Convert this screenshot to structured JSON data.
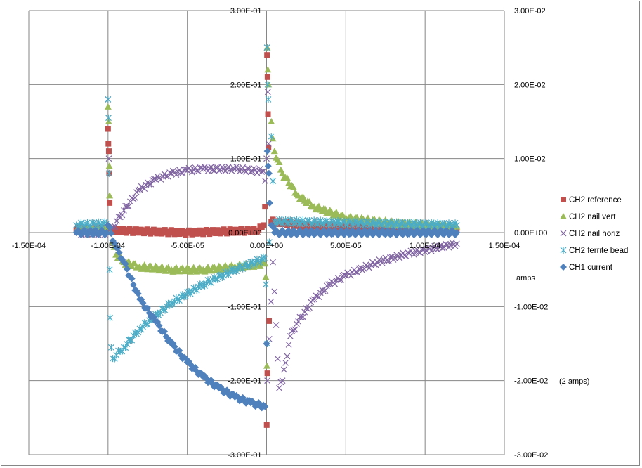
{
  "chart_data": {
    "type": "scatter",
    "title": "",
    "xlim": [
      -0.00015,
      0.00015
    ],
    "ylim": [
      -0.3,
      0.3
    ],
    "y2lim": [
      -0.03,
      0.03
    ],
    "grid": true,
    "legend_position": "right",
    "x_ticks": [
      "-1.50E-04",
      "-1.00E-04",
      "-5.00E-05",
      "0.00E+00",
      "5.00E-05",
      "1.00E-04",
      "1.50E-04"
    ],
    "x_tick_values": [
      -0.00015,
      -0.0001,
      -5e-05,
      0,
      5e-05,
      0.0001,
      0.00015
    ],
    "y_ticks": [
      "3.00E-01",
      "2.00E-01",
      "1.00E-01",
      "0.00E+00",
      "-1.00E-01",
      "-2.00E-01",
      "-3.00E-01"
    ],
    "y_tick_values": [
      0.3,
      0.2,
      0.1,
      0,
      -0.1,
      -0.2,
      -0.3
    ],
    "y2_ticks": [
      "3.00E-02",
      "2.00E-02",
      "1.00E-02",
      "0.00E+00",
      "-1.00E-02",
      "-2.00E-02",
      "-3.00E-02"
    ],
    "annotations": {
      "amps": "amps",
      "two_amps": "(2 amps)"
    },
    "series": [
      {
        "name": "CH2 reference",
        "color": "#C0504D",
        "marker": "square",
        "points": [
          [
            -0.00012,
            0.004
          ],
          [
            -0.000101,
            0.004
          ],
          [
            -0.0001,
            0.14
          ],
          [
            -9.98e-05,
            0.12
          ],
          [
            -9.95e-05,
            0.11
          ],
          [
            -9.93e-05,
            0.08
          ],
          [
            -9.9e-05,
            0.04
          ],
          [
            -9.85e-05,
            0.003
          ],
          [
            -5e-05,
            0.0
          ],
          [
            -5e-06,
            0.003
          ],
          [
            -2e-06,
            0.01
          ],
          [
            -1e-06,
            0.035
          ],
          [
            3e-07,
            0.24
          ],
          [
            6e-07,
            0.21
          ],
          [
            9e-07,
            0.16
          ],
          [
            1.2e-06,
            0.115
          ],
          [
            5e-07,
            -0.19
          ],
          [
            1e-07,
            -0.26
          ],
          [
            3e-06,
            0.015
          ],
          [
            3e-05,
            0.008
          ],
          [
            0.00012,
            0.004
          ]
        ]
      },
      {
        "name": "CH2 nail vert",
        "color": "#9BBB59",
        "marker": "triangle",
        "points": [
          [
            -0.00012,
            0.003
          ],
          [
            -0.000101,
            0.003
          ],
          [
            -0.0001,
            0.17
          ],
          [
            -9.96e-05,
            0.15
          ],
          [
            -9.92e-05,
            0.09
          ],
          [
            -9.9e-05,
            0.05
          ],
          [
            -9.85e-05,
            0.0
          ],
          [
            -9.5e-05,
            -0.03
          ],
          [
            -9e-05,
            -0.04
          ],
          [
            -8e-05,
            -0.046
          ],
          [
            -6e-05,
            -0.05
          ],
          [
            -4e-05,
            -0.05
          ],
          [
            -2e-05,
            -0.046
          ],
          [
            -1e-06,
            -0.042
          ],
          [
            -5e-07,
            -0.06
          ],
          [
            2e-07,
            -0.18
          ],
          [
            4e-07,
            0.25
          ],
          [
            8e-07,
            0.22
          ],
          [
            1.2e-06,
            0.2
          ],
          [
            3e-06,
            0.15
          ],
          [
            5e-06,
            0.11
          ],
          [
            1e-05,
            0.08
          ],
          [
            2e-05,
            0.05
          ],
          [
            3e-05,
            0.035
          ],
          [
            5e-05,
            0.02
          ],
          [
            8e-05,
            0.013
          ],
          [
            0.00012,
            0.008
          ]
        ]
      },
      {
        "name": "CH2 nail horiz",
        "color": "#8064A2",
        "marker": "x",
        "points": [
          [
            -0.00012,
            0.0
          ],
          [
            -0.000101,
            0.0
          ],
          [
            -0.0001,
            0.18
          ],
          [
            -9.95e-05,
            0.1
          ],
          [
            -9.9e-05,
            0.0
          ],
          [
            -9e-05,
            0.03
          ],
          [
            -8e-05,
            0.058
          ],
          [
            -7e-05,
            0.072
          ],
          [
            -6e-05,
            0.08
          ],
          [
            -5e-05,
            0.084
          ],
          [
            -4e-05,
            0.086
          ],
          [
            -2e-05,
            0.086
          ],
          [
            -2e-06,
            0.083
          ],
          [
            -1e-06,
            0.07
          ],
          [
            0.0,
            0.1
          ],
          [
            3e-07,
            0.25
          ],
          [
            8e-07,
            0.19
          ],
          [
            1.2e-06,
            0.12
          ],
          [
            5e-07,
            -0.2
          ],
          [
            4e-06,
            -0.04
          ],
          [
            8e-06,
            -0.21
          ],
          [
            1e-05,
            -0.2
          ],
          [
            1.5e-05,
            -0.14
          ],
          [
            2e-05,
            -0.12
          ],
          [
            3e-05,
            -0.09
          ],
          [
            4e-05,
            -0.07
          ],
          [
            5e-05,
            -0.058
          ],
          [
            7e-05,
            -0.04
          ],
          [
            9e-05,
            -0.028
          ],
          [
            0.00012,
            -0.015
          ]
        ]
      },
      {
        "name": "CH2 ferrite bead",
        "color": "#4BACC6",
        "marker": "asterisk",
        "points": [
          [
            -0.00012,
            0.01
          ],
          [
            -0.000101,
            0.012
          ],
          [
            -0.0001,
            0.18
          ],
          [
            -9.97e-05,
            0.155
          ],
          [
            -9.93e-05,
            0.08
          ],
          [
            -9.9e-05,
            -0.05
          ],
          [
            -9.88e-05,
            -0.115
          ],
          [
            -9.8e-05,
            -0.155
          ],
          [
            -9.7e-05,
            -0.17
          ],
          [
            -9e-05,
            -0.155
          ],
          [
            -8e-05,
            -0.13
          ],
          [
            -6e-05,
            -0.095
          ],
          [
            -4e-05,
            -0.07
          ],
          [
            -2e-05,
            -0.05
          ],
          [
            -1e-06,
            -0.035
          ],
          [
            -5e-07,
            -0.07
          ],
          [
            3e-07,
            0.25
          ],
          [
            7e-07,
            0.2
          ],
          [
            1.1e-06,
            0.18
          ],
          [
            5e-07,
            -0.15
          ],
          [
            3e-06,
            0.13
          ],
          [
            5e-06,
            0.015
          ],
          [
            0.00012,
            0.01
          ]
        ]
      },
      {
        "name": "CH1 current",
        "color": "#4F81BD",
        "marker": "diamond",
        "points": [
          [
            -0.00012,
            0.0
          ],
          [
            -0.000101,
            0.0
          ],
          [
            -0.0001,
            0.01
          ],
          [
            -9.5e-05,
            -0.02
          ],
          [
            -9e-05,
            -0.04
          ],
          [
            -8e-05,
            -0.09
          ],
          [
            -7e-05,
            -0.12
          ],
          [
            -6e-05,
            -0.15
          ],
          [
            -5e-05,
            -0.175
          ],
          [
            -4e-05,
            -0.195
          ],
          [
            -3e-05,
            -0.21
          ],
          [
            -2e-05,
            -0.222
          ],
          [
            -1e-05,
            -0.23
          ],
          [
            -1e-06,
            -0.235
          ],
          [
            0.0,
            -0.15
          ],
          [
            5e-07,
            0.11
          ],
          [
            1e-06,
            0.09
          ],
          [
            1.5e-06,
            0.08
          ],
          [
            2e-06,
            0.04
          ],
          [
            3e-06,
            0.01
          ],
          [
            5e-06,
            0.0
          ],
          [
            0.00012,
            0.0
          ]
        ]
      }
    ]
  }
}
